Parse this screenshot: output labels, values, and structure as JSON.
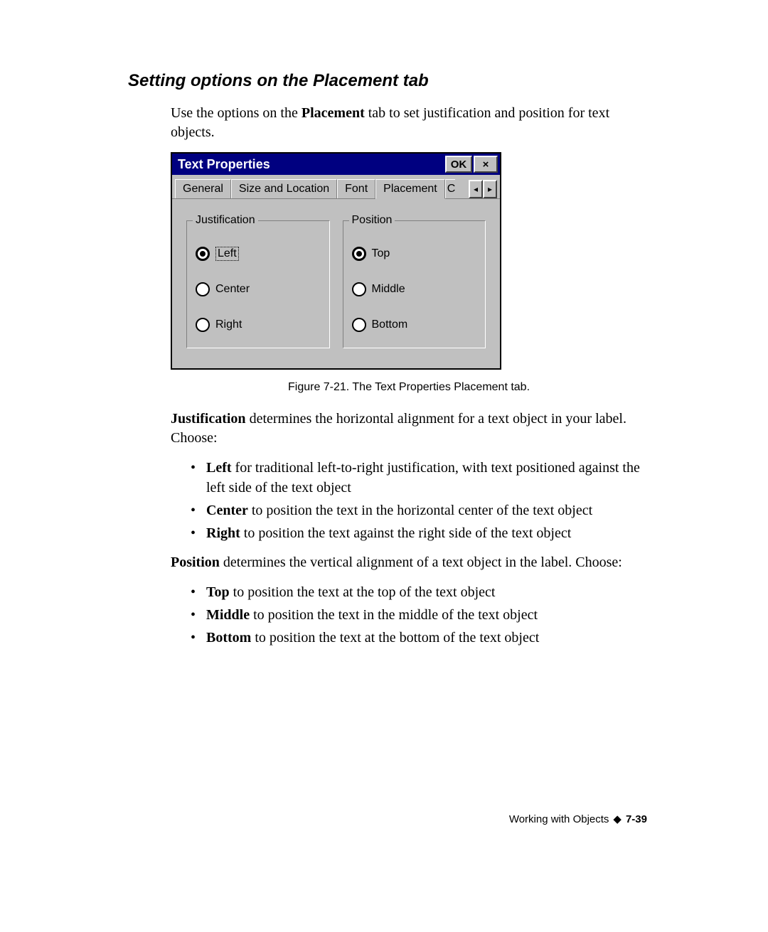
{
  "heading": "Setting options on the Placement tab",
  "intro": {
    "pre": "Use the options on the ",
    "bold": "Placement",
    "post": " tab to set justification and position for text objects."
  },
  "dialog": {
    "title": "Text Properties",
    "ok_label": "OK",
    "close_label": "×",
    "tabs": {
      "general": "General",
      "size_loc": "Size and Location",
      "font": "Font",
      "placement": "Placement",
      "partial": "C"
    },
    "scroll_left": "◂",
    "scroll_right": "▸",
    "group_justification": {
      "legend": "Justification",
      "options": {
        "left": "Left",
        "center": "Center",
        "right": "Right"
      },
      "selected": "left"
    },
    "group_position": {
      "legend": "Position",
      "options": {
        "top": "Top",
        "middle": "Middle",
        "bottom": "Bottom"
      },
      "selected": "top"
    }
  },
  "caption": "Figure 7-21. The Text Properties Placement tab.",
  "justification_para": {
    "bold": "Justification",
    "rest": " determines the horizontal alignment for a text object in your label. Choose:"
  },
  "just_items": {
    "left": {
      "b": "Left",
      "t": " for traditional left-to-right justification, with text positioned against the left side of the text object"
    },
    "center": {
      "b": "Center",
      "t": " to position the text in the horizontal center of the text object"
    },
    "right": {
      "b": "Right",
      "t": " to position the text against the right side of the text object"
    }
  },
  "position_para": {
    "bold": "Position",
    "rest": " determines the vertical alignment of a text object in the label. Choose:"
  },
  "pos_items": {
    "top": {
      "b": "Top",
      "t": " to position the text at the top of the text object"
    },
    "middle": {
      "b": "Middle",
      "t": " to position the text in the middle of the text object"
    },
    "bottom": {
      "b": "Bottom",
      "t": " to position the text at the bottom of the text object"
    }
  },
  "footer": {
    "text": "Working with Objects",
    "diamond": "◆",
    "page": "7-39"
  }
}
